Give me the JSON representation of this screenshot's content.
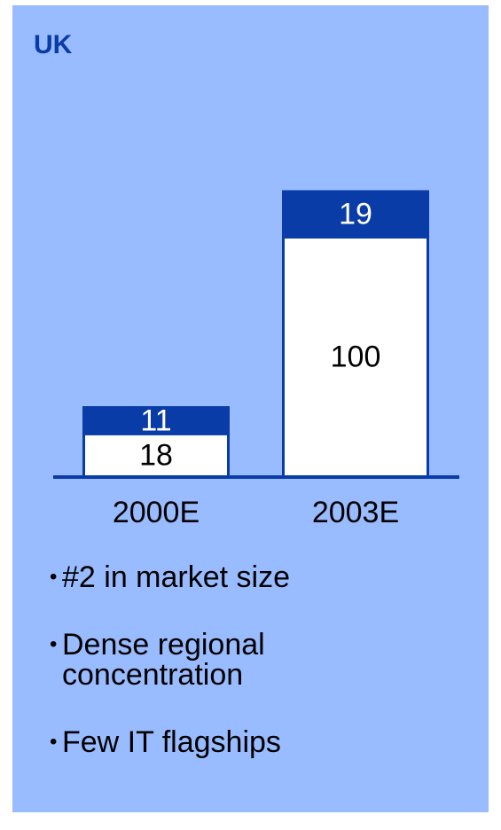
{
  "chart_data": {
    "type": "stacked_bar",
    "title": "UK",
    "categories": [
      "2000E",
      "2003E"
    ],
    "series": [
      {
        "color": "#ffffff",
        "values": [
          18,
          100
        ]
      },
      {
        "color": "#0a3ca8",
        "values": [
          11,
          19
        ]
      }
    ],
    "bullets": [
      "#2 in market size",
      "Dense regional concentration",
      "Few IT flagships"
    ]
  }
}
